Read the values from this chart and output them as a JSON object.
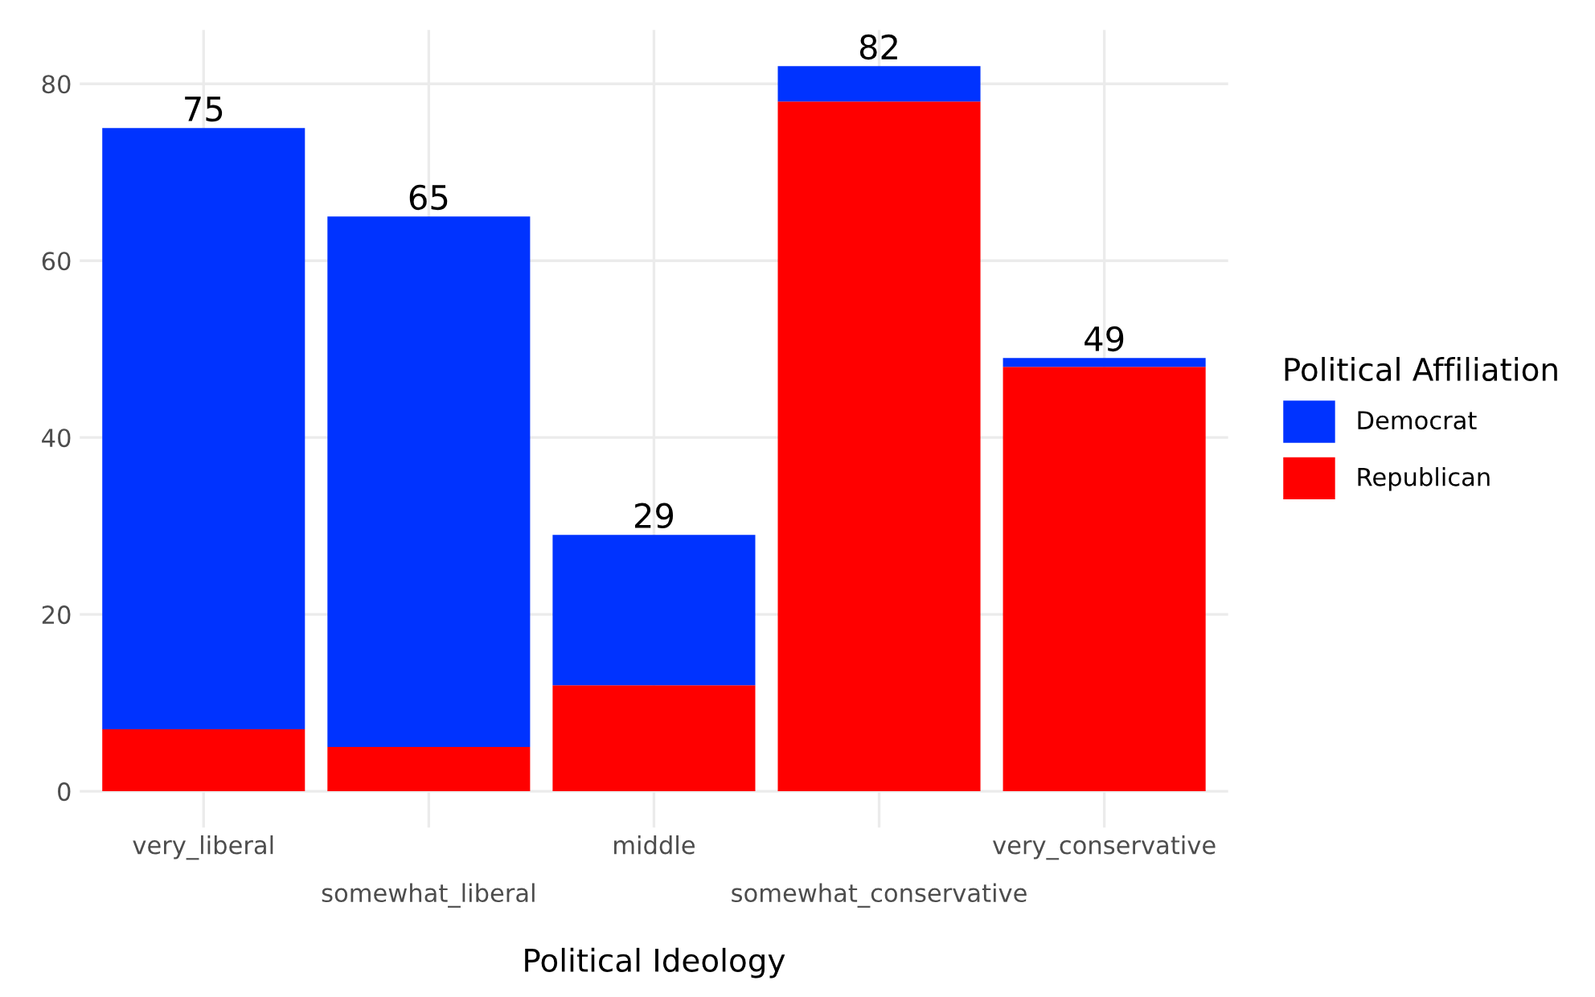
{
  "chart_data": {
    "type": "bar",
    "stacked": true,
    "xlabel": "Political Ideology",
    "legend_title": "Political Affiliation",
    "legend": "right",
    "grid": true,
    "categories": [
      "very_liberal",
      "somewhat_liberal",
      "middle",
      "somewhat_conservative",
      "very_conservative"
    ],
    "series": [
      {
        "name": "Republican",
        "color": "#ff0000",
        "values": [
          7,
          5,
          12,
          78,
          48
        ]
      },
      {
        "name": "Democrat",
        "color": "#0033ff",
        "values": [
          68,
          60,
          17,
          4,
          1
        ]
      }
    ],
    "totals": [
      "75",
      "65",
      "29",
      "82",
      "49"
    ],
    "ylim": [
      -4.1,
      86.1
    ],
    "yticks": [
      0,
      20,
      40,
      60,
      80
    ]
  }
}
